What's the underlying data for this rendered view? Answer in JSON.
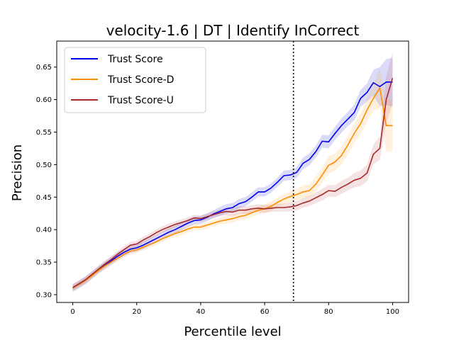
{
  "chart_data": {
    "type": "line",
    "title": "velocity-1.6 | DT | Identify InCorrect",
    "xlabel": "Percentile level",
    "ylabel": "Precision",
    "xlim": [
      -5,
      105
    ],
    "ylim": [
      0.288,
      0.69
    ],
    "xticks": [
      0,
      20,
      40,
      60,
      80,
      100
    ],
    "yticks": [
      0.3,
      0.35,
      0.4,
      0.45,
      0.5,
      0.55,
      0.6,
      0.65
    ],
    "xtick_labels": [
      "0",
      "20",
      "40",
      "60",
      "80",
      "100"
    ],
    "ytick_labels": [
      "0.30",
      "0.35",
      "0.40",
      "0.45",
      "0.50",
      "0.55",
      "0.60",
      "0.65"
    ],
    "grid": false,
    "legend_position": "top-left",
    "vline": {
      "x": 69,
      "style": "dotted",
      "color": "#000000"
    },
    "x": [
      0,
      2,
      4,
      6,
      8,
      10,
      12,
      14,
      16,
      18,
      20,
      22,
      24,
      26,
      28,
      30,
      32,
      34,
      36,
      38,
      40,
      42,
      44,
      46,
      48,
      50,
      52,
      54,
      56,
      58,
      60,
      62,
      64,
      66,
      68,
      70,
      72,
      74,
      76,
      78,
      80,
      82,
      84,
      86,
      88,
      90,
      92,
      94,
      96,
      98,
      100
    ],
    "series": [
      {
        "name": "Trust Score",
        "color": "#0000ee",
        "band_color": "#3333dd",
        "values": [
          0.31,
          0.316,
          0.322,
          0.33,
          0.338,
          0.345,
          0.352,
          0.359,
          0.365,
          0.37,
          0.372,
          0.376,
          0.381,
          0.386,
          0.391,
          0.396,
          0.4,
          0.405,
          0.41,
          0.414,
          0.415,
          0.419,
          0.424,
          0.428,
          0.432,
          0.434,
          0.44,
          0.443,
          0.45,
          0.458,
          0.458,
          0.464,
          0.473,
          0.483,
          0.484,
          0.488,
          0.502,
          0.508,
          0.52,
          0.536,
          0.535,
          0.548,
          0.56,
          0.57,
          0.58,
          0.602,
          0.611,
          0.626,
          0.62,
          0.627,
          0.627
        ],
        "band": [
          0.006,
          0.006,
          0.006,
          0.006,
          0.006,
          0.006,
          0.006,
          0.006,
          0.006,
          0.006,
          0.006,
          0.006,
          0.006,
          0.006,
          0.006,
          0.006,
          0.006,
          0.006,
          0.006,
          0.006,
          0.006,
          0.006,
          0.006,
          0.007,
          0.007,
          0.007,
          0.007,
          0.007,
          0.007,
          0.007,
          0.007,
          0.007,
          0.007,
          0.008,
          0.008,
          0.008,
          0.009,
          0.009,
          0.009,
          0.01,
          0.01,
          0.01,
          0.011,
          0.011,
          0.012,
          0.013,
          0.014,
          0.02,
          0.03,
          0.035,
          0.038
        ]
      },
      {
        "name": "Trust Score-D",
        "color": "#ff8c00",
        "band_color": "#ffb347",
        "values": [
          0.31,
          0.316,
          0.322,
          0.329,
          0.337,
          0.344,
          0.35,
          0.356,
          0.362,
          0.367,
          0.369,
          0.373,
          0.377,
          0.381,
          0.386,
          0.39,
          0.394,
          0.397,
          0.401,
          0.404,
          0.404,
          0.407,
          0.41,
          0.413,
          0.415,
          0.417,
          0.42,
          0.422,
          0.426,
          0.43,
          0.432,
          0.436,
          0.442,
          0.447,
          0.451,
          0.454,
          0.458,
          0.46,
          0.47,
          0.484,
          0.499,
          0.504,
          0.514,
          0.53,
          0.548,
          0.563,
          0.584,
          0.602,
          0.618,
          0.56,
          0.56
        ],
        "band": [
          0.005,
          0.005,
          0.005,
          0.005,
          0.005,
          0.005,
          0.005,
          0.005,
          0.005,
          0.005,
          0.005,
          0.005,
          0.005,
          0.005,
          0.005,
          0.005,
          0.005,
          0.005,
          0.005,
          0.005,
          0.005,
          0.005,
          0.005,
          0.005,
          0.006,
          0.006,
          0.006,
          0.006,
          0.006,
          0.006,
          0.007,
          0.007,
          0.007,
          0.008,
          0.008,
          0.009,
          0.01,
          0.01,
          0.012,
          0.012,
          0.013,
          0.013,
          0.014,
          0.015,
          0.015,
          0.016,
          0.018,
          0.02,
          0.03,
          0.04,
          0.04
        ]
      },
      {
        "name": "Trust Score-U",
        "color": "#a52a2a",
        "band_color": "#c96060",
        "values": [
          0.311,
          0.317,
          0.323,
          0.331,
          0.339,
          0.347,
          0.354,
          0.362,
          0.369,
          0.376,
          0.378,
          0.384,
          0.389,
          0.395,
          0.4,
          0.404,
          0.408,
          0.411,
          0.414,
          0.418,
          0.417,
          0.42,
          0.423,
          0.426,
          0.428,
          0.427,
          0.43,
          0.43,
          0.432,
          0.433,
          0.432,
          0.433,
          0.434,
          0.434,
          0.435,
          0.437,
          0.441,
          0.444,
          0.449,
          0.454,
          0.46,
          0.459,
          0.465,
          0.47,
          0.476,
          0.479,
          0.487,
          0.516,
          0.525,
          0.6,
          0.633
        ],
        "band": [
          0.005,
          0.005,
          0.005,
          0.005,
          0.005,
          0.005,
          0.005,
          0.005,
          0.005,
          0.005,
          0.005,
          0.005,
          0.005,
          0.005,
          0.005,
          0.005,
          0.005,
          0.005,
          0.005,
          0.005,
          0.005,
          0.005,
          0.005,
          0.005,
          0.006,
          0.006,
          0.006,
          0.006,
          0.006,
          0.006,
          0.006,
          0.006,
          0.006,
          0.006,
          0.007,
          0.007,
          0.007,
          0.008,
          0.008,
          0.009,
          0.009,
          0.009,
          0.01,
          0.01,
          0.011,
          0.012,
          0.013,
          0.015,
          0.018,
          0.035,
          0.04
        ]
      }
    ]
  }
}
